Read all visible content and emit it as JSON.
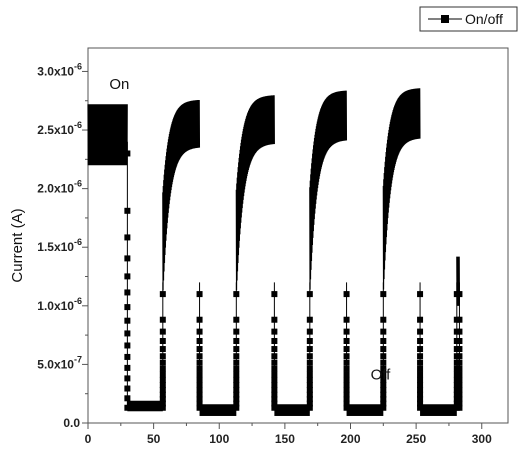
{
  "chart_data": {
    "type": "line",
    "title": "",
    "xlabel": "",
    "ylabel": "Current (A)",
    "xlim": [
      0,
      320
    ],
    "ylim": [
      0,
      3.2e-06
    ],
    "x_ticks": [
      {
        "value": 0,
        "label": "0"
      },
      {
        "value": 50,
        "label": "50"
      },
      {
        "value": 100,
        "label": "100"
      },
      {
        "value": 150,
        "label": "150"
      },
      {
        "value": 200,
        "label": "200"
      },
      {
        "value": 250,
        "label": "250"
      },
      {
        "value": 300,
        "label": "300"
      }
    ],
    "y_ticks": [
      {
        "value": 0,
        "label": "0.0"
      },
      {
        "value": 5e-07,
        "label": "5.0x10",
        "exp": "-7"
      },
      {
        "value": 1e-06,
        "label": "1.0x10",
        "exp": "-6"
      },
      {
        "value": 1.5e-06,
        "label": "1.5x10",
        "exp": "-6"
      },
      {
        "value": 2e-06,
        "label": "2.0x10",
        "exp": "-6"
      },
      {
        "value": 2.5e-06,
        "label": "2.5x10",
        "exp": "-6"
      },
      {
        "value": 3e-06,
        "label": "3.0x10",
        "exp": "-6"
      }
    ],
    "grid": false,
    "legend_position": "top-right",
    "series": [
      {
        "name": "On/off",
        "color": "#000000",
        "marker": "square",
        "on_periods": [
          {
            "start": 0,
            "end": 30,
            "low": 2.2e-06,
            "high": 2.72e-06
          },
          {
            "start": 57,
            "end": 85,
            "low": 1e-06,
            "high": 2.76e-06
          },
          {
            "start": 113,
            "end": 142,
            "low": 1e-06,
            "high": 2.8e-06
          },
          {
            "start": 169,
            "end": 197,
            "low": 1e-06,
            "high": 2.84e-06
          },
          {
            "start": 225,
            "end": 253,
            "low": 1e-06,
            "high": 2.86e-06
          },
          {
            "start": 281,
            "end": 283,
            "low": 1e-06,
            "high": 1.42e-06
          }
        ],
        "off_periods": [
          {
            "start": 30,
            "end": 57,
            "low": 1e-07,
            "high": 1.9e-07
          },
          {
            "start": 85,
            "end": 113,
            "low": 6e-08,
            "high": 1.6e-07
          },
          {
            "start": 142,
            "end": 169,
            "low": 6e-08,
            "high": 1.6e-07
          },
          {
            "start": 197,
            "end": 225,
            "low": 6e-08,
            "high": 1.6e-07
          },
          {
            "start": 253,
            "end": 281,
            "low": 6e-08,
            "high": 1.6e-07
          }
        ]
      }
    ],
    "annotations": [
      {
        "text": "On",
        "x": 30,
        "y": 2.85e-06
      },
      {
        "text": "Off",
        "x": 229,
        "y": 3.7e-07
      }
    ]
  },
  "colors": {
    "series": "#000000",
    "axis": "#555555"
  }
}
